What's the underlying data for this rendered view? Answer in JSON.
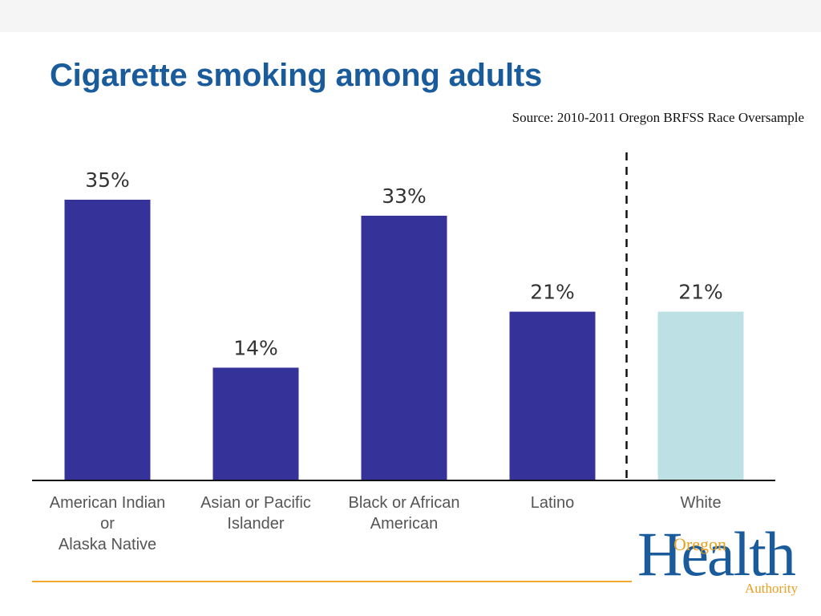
{
  "slide": {
    "title": "Cigarette smoking among adults",
    "source": "Source: 2010-2011 Oregon BRFSS Race Oversample"
  },
  "logo": {
    "big": "Health",
    "top_word": "Oregon",
    "bottom_word": "Authority"
  },
  "colors": {
    "bar_primary": "#35329a",
    "bar_reference": "#bde0e4",
    "title": "#1a5b9c",
    "accent": "#f0a830"
  },
  "chart_data": {
    "type": "bar",
    "title": "",
    "xlabel": "",
    "ylabel": "",
    "ylim": [
      0,
      35
    ],
    "grid": false,
    "legend": "none",
    "categories": [
      [
        "American Indian",
        "or",
        "Alaska Native"
      ],
      [
        "Asian or Pacific",
        "Islander"
      ],
      [
        "Black or African",
        "American"
      ],
      [
        "Latino"
      ],
      [
        "White"
      ]
    ],
    "values": [
      35,
      14,
      33,
      21,
      21
    ],
    "value_labels": [
      "35%",
      "14%",
      "33%",
      "21%",
      "21%"
    ],
    "reference_category_index": 4,
    "separator_before_index": 4
  }
}
